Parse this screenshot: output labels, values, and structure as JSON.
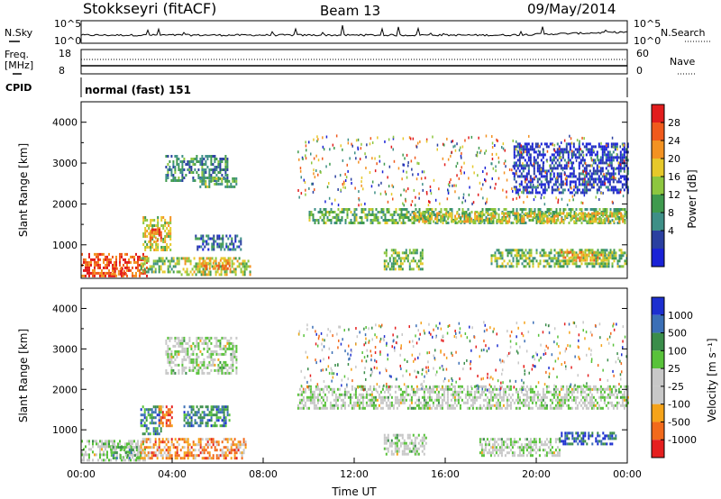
{
  "header": {
    "station": "Stokkseyri (fitACF)",
    "beam": "Beam 13",
    "date": "09/May/2014"
  },
  "labels": {
    "nsky": "N.Sky",
    "freq": "Freq.",
    "freq_unit": "[MHz]",
    "cpid": "CPID",
    "nsearch": "N.Search",
    "nave": "Nave",
    "mode": "normal (fast) 151",
    "xlabel": "Time UT",
    "power_label": "Power [dB]",
    "velocity_label": "Velocity [m s⁻¹]",
    "slant_range": "Slant Range [km]"
  },
  "top_axes": {
    "noise_left_ticks": [
      "10^5",
      "10^0"
    ],
    "noise_right_ticks": [
      "10^5",
      "10^0"
    ],
    "freq_left_ticks": [
      "18",
      "8"
    ],
    "nave_right_ticks": [
      "60",
      "0"
    ]
  },
  "chart_data": [
    {
      "type": "heatmap",
      "name": "power",
      "ylabel": "Slant Range [km]",
      "ylim": [
        180,
        4500
      ],
      "yticks": [
        1000,
        2000,
        3000,
        4000
      ],
      "xlim": [
        0,
        24
      ],
      "xticks": [
        "00:00",
        "04:00",
        "08:00",
        "12:00",
        "16:00",
        "20:00",
        "00:00"
      ],
      "colorbar": {
        "label": "Power [dB]",
        "ticks": [
          "28",
          "24",
          "20",
          "16",
          "12",
          "8",
          "4"
        ],
        "colors": [
          "#e21d1d",
          "#f05a1c",
          "#f39222",
          "#e6c82a",
          "#8dc63f",
          "#3f9a4e",
          "#3e8f87",
          "#2a3fa0",
          "#1a22d6"
        ]
      },
      "regions": [
        {
          "t0": 0.0,
          "t1": 2.9,
          "r0": 250,
          "r1": 800,
          "level": 0.85
        },
        {
          "t0": 1.3,
          "t1": 2.0,
          "r0": 300,
          "r1": 450,
          "level": 0.9
        },
        {
          "t0": 2.6,
          "t1": 4.3,
          "r0": 350,
          "r1": 700,
          "level": 0.45
        },
        {
          "t0": 4.3,
          "t1": 7.4,
          "r0": 300,
          "r1": 700,
          "level": 0.55
        },
        {
          "t0": 5.3,
          "t1": 6.5,
          "r0": 420,
          "r1": 650,
          "level": 0.75
        },
        {
          "t0": 2.7,
          "t1": 3.9,
          "r0": 850,
          "r1": 1700,
          "level": 0.55
        },
        {
          "t0": 3.0,
          "t1": 3.6,
          "r0": 1100,
          "r1": 1400,
          "level": 0.85
        },
        {
          "t0": 5.0,
          "t1": 7.0,
          "r0": 900,
          "r1": 1250,
          "level": 0.2
        },
        {
          "t0": 3.7,
          "t1": 6.4,
          "r0": 2600,
          "r1": 3200,
          "level": 0.3
        },
        {
          "t0": 5.2,
          "t1": 6.8,
          "r0": 2400,
          "r1": 2650,
          "level": 0.4
        },
        {
          "t0": 10.0,
          "t1": 24.0,
          "r0": 1550,
          "r1": 1900,
          "level": 0.4
        },
        {
          "t0": 14.5,
          "t1": 24.0,
          "r0": 1600,
          "r1": 1800,
          "level": 0.6
        },
        {
          "t0": 13.3,
          "t1": 15.0,
          "r0": 400,
          "r1": 900,
          "level": 0.45
        },
        {
          "t0": 18.0,
          "t1": 24.0,
          "r0": 450,
          "r1": 900,
          "level": 0.45
        },
        {
          "t0": 21.0,
          "t1": 23.3,
          "r0": 650,
          "r1": 850,
          "level": 0.7
        },
        {
          "t0": 19.0,
          "t1": 24.0,
          "r0": 2300,
          "r1": 3500,
          "level": 0.1
        }
      ]
    },
    {
      "type": "heatmap",
      "name": "velocity",
      "ylabel": "Slant Range [km]",
      "ylim": [
        180,
        4500
      ],
      "yticks": [
        1000,
        2000,
        3000,
        4000
      ],
      "xlim": [
        0,
        24
      ],
      "xticks": [
        "00:00",
        "04:00",
        "08:00",
        "12:00",
        "16:00",
        "20:00",
        "00:00"
      ],
      "xlabel": "Time UT",
      "colorbar": {
        "label": "Velocity [m s⁻¹]",
        "ticks": [
          "1000",
          "500",
          "100",
          "25",
          "-25",
          "-100",
          "-500",
          "-1000"
        ],
        "colors": [
          "#1d2fd0",
          "#3b6fb6",
          "#3a8d4a",
          "#58c23a",
          "#c8c8c8",
          "#c8c8c8",
          "#f5a31a",
          "#f26a1b",
          "#e51f1f"
        ]
      },
      "regions": [
        {
          "t0": 0.0,
          "t1": 2.8,
          "r0": 250,
          "r1": 750,
          "level": 0.5
        },
        {
          "t0": 1.3,
          "t1": 2.6,
          "r0": 300,
          "r1": 600,
          "level": 0.62
        },
        {
          "t0": 2.6,
          "t1": 7.2,
          "r0": 300,
          "r1": 800,
          "level": 0.25
        },
        {
          "t0": 2.6,
          "t1": 3.5,
          "r0": 900,
          "r1": 1600,
          "level": 0.75
        },
        {
          "t0": 3.4,
          "t1": 4.0,
          "r0": 1100,
          "r1": 1600,
          "level": 0.2
        },
        {
          "t0": 4.5,
          "t1": 6.5,
          "r0": 1100,
          "r1": 1600,
          "level": 0.75
        },
        {
          "t0": 3.7,
          "t1": 6.8,
          "r0": 2400,
          "r1": 3300,
          "level": 0.5
        },
        {
          "t0": 9.5,
          "t1": 24.0,
          "r0": 1550,
          "r1": 2100,
          "level": 0.5
        },
        {
          "t0": 13.3,
          "t1": 15.2,
          "r0": 400,
          "r1": 900,
          "level": 0.5
        },
        {
          "t0": 17.5,
          "t1": 21.0,
          "r0": 350,
          "r1": 800,
          "level": 0.5
        },
        {
          "t0": 21.0,
          "t1": 23.5,
          "r0": 650,
          "r1": 950,
          "level": 0.85
        }
      ]
    }
  ]
}
